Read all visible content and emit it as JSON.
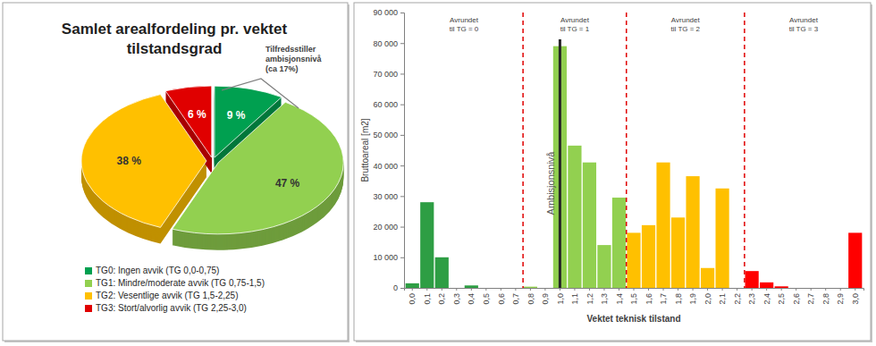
{
  "chart_data": [
    {
      "type": "pie",
      "title": "Samlet arealfordeling pr. vektet tilstandsgrad",
      "categories": [
        "TG0: Ingen avvik (TG 0,0-0,75)",
        "TG1: Mindre/moderate avvik (TG 0,75-1,5)",
        "TG2: Vesentlige avvik (TG 1,5-2,25)",
        "TG3: Stort/alvorlig avvik (TG 2,25-3,0)"
      ],
      "values": [
        9,
        47,
        38,
        6
      ],
      "value_labels": [
        "9 %",
        "47 %",
        "38 %",
        "6 %"
      ],
      "colors": [
        "#00a050",
        "#92d050",
        "#ffc000",
        "#e00000"
      ],
      "data_labels": true,
      "legend": "bottom",
      "annotations": [
        {
          "text": "Tilfredsstiller ambisjonsnivå (ca 17%)"
        }
      ]
    },
    {
      "type": "bar",
      "xlabel": "Vektet teknisk tilstand",
      "ylabel": "Bruttoareal [m2]",
      "categories": [
        "0,0",
        "0,1",
        "0,2",
        "0,3",
        "0,4",
        "0,5",
        "0,6",
        "0,7",
        "0,8",
        "0,9",
        "1,0",
        "1,1",
        "1,2",
        "1,3",
        "1,4",
        "1,5",
        "1,6",
        "1,7",
        "1,8",
        "1,9",
        "2,0",
        "2,1",
        "2,2",
        "2,3",
        "2,4",
        "2,5",
        "2,6",
        "2,7",
        "2,8",
        "2,9",
        "3,0"
      ],
      "values": [
        1500,
        28000,
        10000,
        0,
        800,
        0,
        0,
        0,
        400,
        0,
        79000,
        46500,
        41000,
        14000,
        29500,
        18000,
        20500,
        41000,
        23000,
        36500,
        6500,
        32500,
        0,
        5500,
        1800,
        500,
        0,
        0,
        0,
        0,
        18000
      ],
      "colors": [
        "#2e9e44",
        "#2e9e44",
        "#2e9e44",
        "#2e9e44",
        "#2e9e44",
        "#2e9e44",
        "#2e9e44",
        "#2e9e44",
        "#92d050",
        "#92d050",
        "#92d050",
        "#92d050",
        "#92d050",
        "#92d050",
        "#92d050",
        "#ffc000",
        "#ffc000",
        "#ffc000",
        "#ffc000",
        "#ffc000",
        "#ffc000",
        "#ffc000",
        "#ffc000",
        "#ff0000",
        "#ff0000",
        "#ff0000",
        "#ff0000",
        "#ff0000",
        "#ff0000",
        "#ff0000",
        "#ff0000"
      ],
      "ylim": [
        0,
        90000
      ],
      "yticks": [
        0,
        {
          "value": 10000,
          "label": "10 000"
        },
        {
          "value": 20000,
          "label": "20 000"
        },
        {
          "value": 30000,
          "label": "30 000"
        },
        {
          "value": 40000,
          "label": "40 000"
        },
        {
          "value": 50000,
          "label": "50 000"
        },
        {
          "value": 60000,
          "label": "60 000"
        },
        {
          "value": 70000,
          "label": "70 000"
        },
        {
          "value": 80000,
          "label": "80 000"
        },
        {
          "value": 90000,
          "label": "90 000"
        }
      ],
      "grid": false,
      "annotations": [
        {
          "text": "Avrundet til TG = 0",
          "from": "0,0",
          "to": "0,7"
        },
        {
          "text": "Avrundet til TG = 1",
          "from": "0,8",
          "to": "1,4"
        },
        {
          "text": "Avrundet til TG = 2",
          "from": "1,5",
          "to": "2,2"
        },
        {
          "text": "Avrundet til TG = 3",
          "from": "2,3",
          "to": "3,0"
        },
        {
          "text": "Ambisjonsnivå",
          "at": "1,0"
        }
      ]
    }
  ]
}
